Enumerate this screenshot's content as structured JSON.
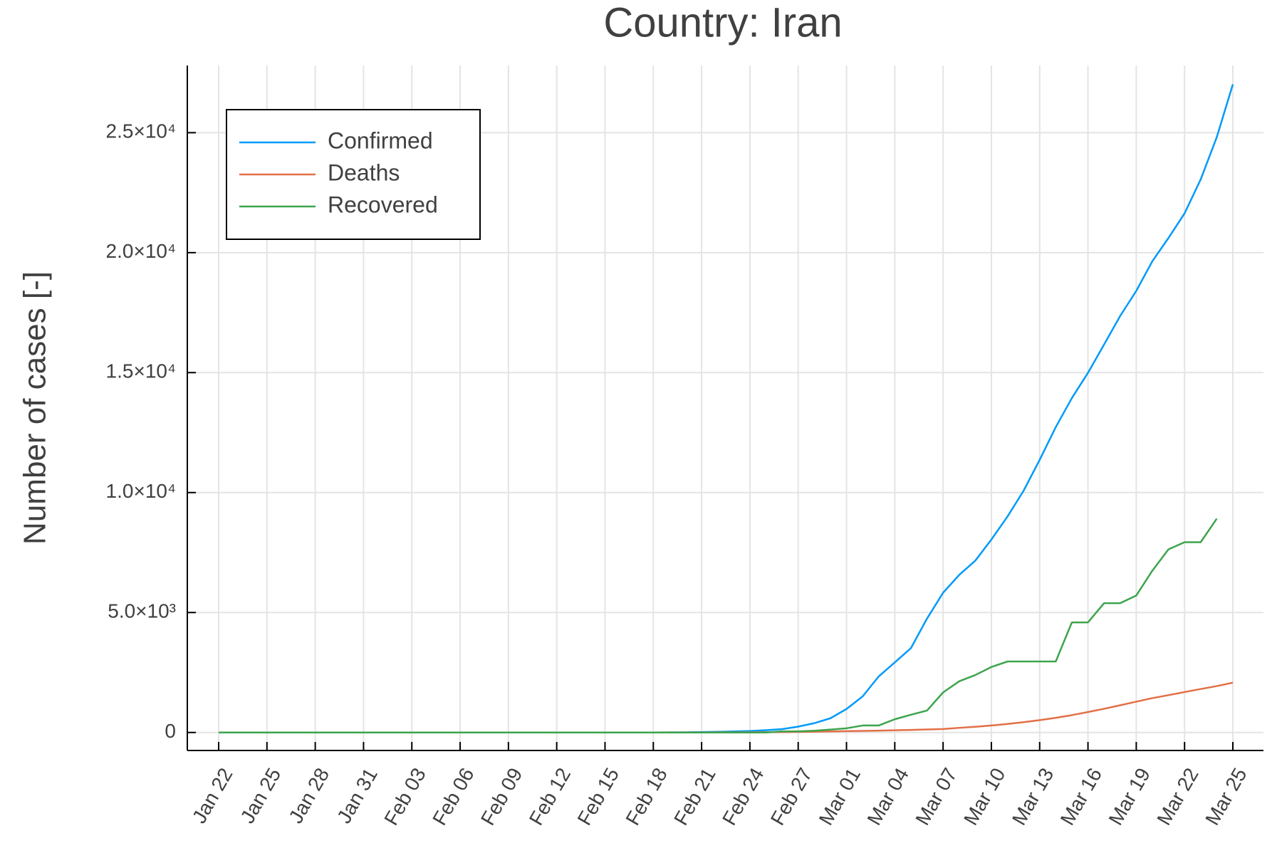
{
  "chart_data": {
    "type": "line",
    "title": "Country: Iran",
    "y_label": "Number of cases [-]",
    "categories": [
      "Jan 22",
      null,
      null,
      "Jan 25",
      null,
      null,
      "Jan 28",
      null,
      null,
      "Jan 31",
      null,
      null,
      "Feb 03",
      null,
      null,
      "Feb 06",
      null,
      null,
      "Feb 09",
      null,
      null,
      "Feb 12",
      null,
      null,
      "Feb 15",
      null,
      null,
      "Feb 18",
      null,
      null,
      "Feb 21",
      null,
      null,
      "Feb 24",
      null,
      null,
      "Feb 27",
      null,
      null,
      "Mar 01",
      null,
      null,
      "Mar 04",
      null,
      null,
      "Mar 07",
      null,
      null,
      "Mar 10",
      null,
      null,
      "Mar 13",
      null,
      null,
      "Mar 16",
      null,
      null,
      "Mar 19",
      null,
      null,
      "Mar 22",
      null,
      null,
      "Mar 25"
    ],
    "series": [
      {
        "name": "Confirmed",
        "color": "#009af9",
        "values": [
          0,
          0,
          0,
          0,
          0,
          0,
          0,
          0,
          0,
          0,
          0,
          0,
          0,
          0,
          0,
          0,
          0,
          0,
          0,
          0,
          0,
          0,
          0,
          0,
          0,
          0,
          0,
          0,
          2,
          5,
          18,
          28,
          43,
          61,
          95,
          139,
          245,
          388,
          593,
          978,
          1501,
          2336,
          2922,
          3513,
          4747,
          5823,
          6566,
          7161,
          8042,
          9000,
          10075,
          11364,
          12729,
          13938,
          14991,
          16169,
          17361,
          18407,
          19644,
          20610,
          21638,
          23049,
          24811,
          27017
        ]
      },
      {
        "name": "Deaths",
        "color": "#e26f46",
        "values": [
          0,
          0,
          0,
          0,
          0,
          0,
          0,
          0,
          0,
          0,
          0,
          0,
          0,
          0,
          0,
          0,
          0,
          0,
          0,
          0,
          0,
          0,
          0,
          0,
          0,
          0,
          0,
          0,
          2,
          2,
          4,
          5,
          8,
          12,
          16,
          19,
          26,
          34,
          43,
          54,
          66,
          77,
          92,
          107,
          124,
          145,
          194,
          237,
          291,
          354,
          429,
          514,
          611,
          724,
          853,
          988,
          1135,
          1284,
          1433,
          1556,
          1685,
          1812,
          1934,
          2077
        ]
      },
      {
        "name": "Recovered",
        "color": "#3da44d",
        "values": [
          0,
          0,
          0,
          0,
          0,
          0,
          0,
          0,
          0,
          0,
          0,
          0,
          0,
          0,
          0,
          0,
          0,
          0,
          0,
          0,
          0,
          0,
          0,
          0,
          0,
          0,
          0,
          0,
          0,
          0,
          0,
          0,
          0,
          0,
          0,
          49,
          49,
          73,
          123,
          175,
          291,
          291,
          552,
          739,
          913,
          1669,
          2134,
          2394,
          2731,
          2959,
          2959,
          2959,
          2959,
          4590,
          4590,
          5389,
          5389,
          5710,
          6745,
          7635,
          7931,
          7931,
          8913,
          null
        ]
      }
    ],
    "ylim": [
      -750,
      27800
    ],
    "yticks": [
      0,
      {
        "value": 5000,
        "label": "5.0×10³"
      },
      {
        "value": 10000,
        "label": "1.0×10⁴"
      },
      {
        "value": 15000,
        "label": "1.5×10⁴"
      },
      {
        "value": 20000,
        "label": "2.0×10⁴"
      },
      {
        "value": 25000,
        "label": "2.5×10⁴"
      }
    ],
    "grid": true,
    "legend": "top left"
  }
}
